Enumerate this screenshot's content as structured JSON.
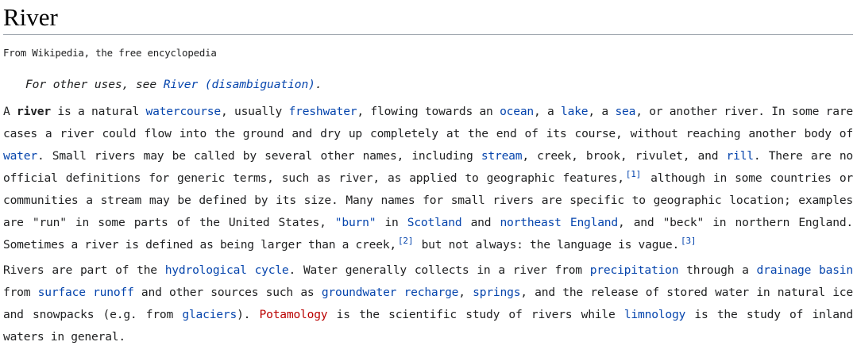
{
  "title": "River",
  "tagline": "From Wikipedia, the free encyclopedia",
  "hatnote": {
    "prefix": "For other uses, see ",
    "link": "River (disambiguation)",
    "suffix": "."
  },
  "p1": {
    "t01": "A ",
    "bold": "river",
    "t02": " is a natural ",
    "l_watercourse": "watercourse",
    "t03": ", usually ",
    "l_freshwater": "freshwater",
    "t04": ", flowing towards an ",
    "l_ocean": "ocean",
    "t05": ", a ",
    "l_lake": "lake",
    "t06": ", a ",
    "l_sea": "sea",
    "t07": ", or another river. In some rare cases a river could flow into the ground and dry up completely at the end of its course, without reaching another body of ",
    "l_water": "water",
    "t08": ". Small rivers may be called by several other names, including ",
    "l_stream": "stream",
    "t09": ", creek, brook, rivulet, and ",
    "l_rill": "rill",
    "t10": ". There are no official definitions for generic terms, such as river, as applied to geographic features,",
    "ref1": "[1]",
    "t11": " although in some countries or communities a stream may be defined by its size. Many names for small rivers are specific to geographic location; examples are \"run\" in some parts of the United States, ",
    "l_burn": "\"burn\"",
    "t12": " in ",
    "l_scotland": "Scotland",
    "t13": " and ",
    "l_northeast": "northeast England",
    "t14": ", and \"beck\" in northern England. Sometimes a river is defined as being larger than a creek,",
    "ref2": "[2]",
    "t15": " but not always: the language is vague.",
    "ref3": "[3]"
  },
  "p2": {
    "t01": "Rivers are part of the ",
    "l_hydro": "hydrological cycle",
    "t02": ". Water generally collects in a river from ",
    "l_precip": "precipitation",
    "t03": " through a ",
    "l_drainage": "drainage basin",
    "t04": " from ",
    "l_runoff": "surface runoff",
    "t05": " and other sources such as ",
    "l_groundwater": "groundwater recharge",
    "t06": ", ",
    "l_springs": "springs",
    "t07": ", and the release of stored water in natural ice and snowpacks (e.g. from ",
    "l_glaciers": "glaciers",
    "t08": "). ",
    "l_potamology": "Potamology",
    "t09": " is the scientific study of rivers while ",
    "l_limnology": "limnology",
    "t10": " is the study of inland waters in general."
  },
  "colors": {
    "link": "#0645ad",
    "redlink": "#ba0000",
    "text": "#202122",
    "rule": "#a2a9b1"
  }
}
